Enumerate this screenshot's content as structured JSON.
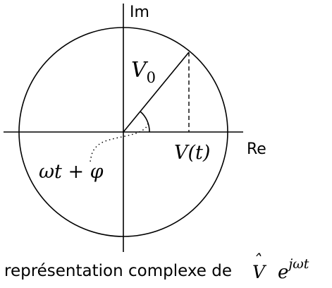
{
  "axes": {
    "imaginary_label": "Im",
    "real_label": "Re"
  },
  "labels": {
    "amplitude_base": "V",
    "amplitude_subscript": "0",
    "projection": "V(t)",
    "phase": "ωt + φ"
  },
  "caption": {
    "text": "représentation complexe de",
    "symbol": "V",
    "hat": "ˆ",
    "exp_base": "e",
    "exp_power": "jωt"
  }
}
